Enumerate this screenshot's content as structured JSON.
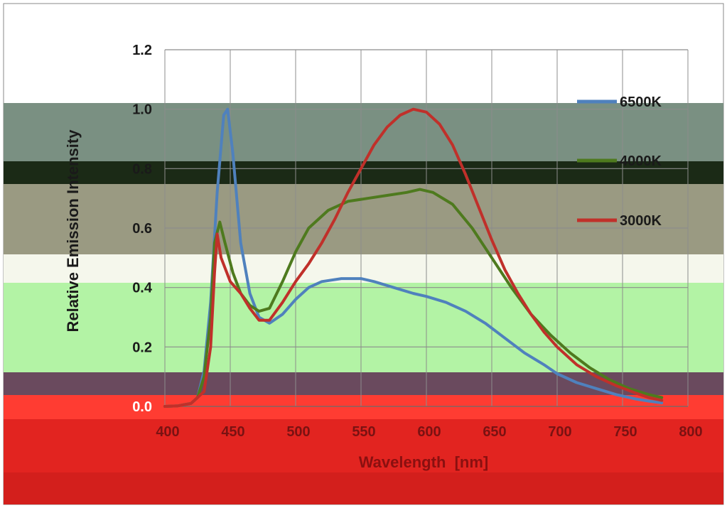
{
  "chart_data": {
    "type": "line",
    "title": "",
    "xlabel": "Wavelength  [nm]",
    "ylabel": "Relative Emission Intensity",
    "xlim": [
      400,
      800
    ],
    "ylim": [
      0,
      1.2
    ],
    "x_ticks": [
      400,
      450,
      500,
      550,
      600,
      650,
      700,
      750,
      800
    ],
    "y_ticks": [
      "0.0",
      "0.2",
      "0.4",
      "0.6",
      "0.8",
      "1.0",
      "1.2"
    ],
    "grid": true,
    "legend_position": "right",
    "series": [
      {
        "name": "6500K",
        "color": "#4f81bd",
        "points": [
          [
            400,
            0
          ],
          [
            410,
            0.002
          ],
          [
            420,
            0.01
          ],
          [
            425,
            0.03
          ],
          [
            430,
            0.12
          ],
          [
            435,
            0.35
          ],
          [
            440,
            0.72
          ],
          [
            445,
            0.98
          ],
          [
            448,
            1.0
          ],
          [
            452,
            0.85
          ],
          [
            458,
            0.55
          ],
          [
            465,
            0.38
          ],
          [
            472,
            0.3
          ],
          [
            480,
            0.28
          ],
          [
            490,
            0.31
          ],
          [
            500,
            0.36
          ],
          [
            510,
            0.4
          ],
          [
            520,
            0.42
          ],
          [
            535,
            0.43
          ],
          [
            550,
            0.43
          ],
          [
            560,
            0.42
          ],
          [
            575,
            0.4
          ],
          [
            590,
            0.38
          ],
          [
            600,
            0.37
          ],
          [
            615,
            0.35
          ],
          [
            630,
            0.32
          ],
          [
            645,
            0.28
          ],
          [
            660,
            0.23
          ],
          [
            675,
            0.18
          ],
          [
            690,
            0.14
          ],
          [
            700,
            0.11
          ],
          [
            715,
            0.08
          ],
          [
            730,
            0.06
          ],
          [
            745,
            0.04
          ],
          [
            760,
            0.025
          ],
          [
            770,
            0.018
          ],
          [
            780,
            0.012
          ]
        ]
      },
      {
        "name": "4000K",
        "color": "#4e7a1e",
        "points": [
          [
            400,
            0
          ],
          [
            410,
            0.002
          ],
          [
            420,
            0.01
          ],
          [
            425,
            0.03
          ],
          [
            430,
            0.1
          ],
          [
            435,
            0.3
          ],
          [
            438,
            0.55
          ],
          [
            442,
            0.62
          ],
          [
            446,
            0.55
          ],
          [
            452,
            0.45
          ],
          [
            458,
            0.38
          ],
          [
            465,
            0.34
          ],
          [
            472,
            0.32
          ],
          [
            480,
            0.33
          ],
          [
            490,
            0.42
          ],
          [
            500,
            0.52
          ],
          [
            510,
            0.6
          ],
          [
            525,
            0.66
          ],
          [
            540,
            0.69
          ],
          [
            555,
            0.7
          ],
          [
            570,
            0.71
          ],
          [
            585,
            0.72
          ],
          [
            595,
            0.73
          ],
          [
            605,
            0.72
          ],
          [
            620,
            0.68
          ],
          [
            635,
            0.6
          ],
          [
            650,
            0.5
          ],
          [
            665,
            0.4
          ],
          [
            680,
            0.31
          ],
          [
            695,
            0.24
          ],
          [
            710,
            0.18
          ],
          [
            725,
            0.13
          ],
          [
            740,
            0.09
          ],
          [
            755,
            0.06
          ],
          [
            770,
            0.04
          ],
          [
            780,
            0.03
          ]
        ]
      },
      {
        "name": "3000K",
        "color": "#c0302a",
        "points": [
          [
            400,
            0
          ],
          [
            410,
            0.002
          ],
          [
            420,
            0.01
          ],
          [
            430,
            0.05
          ],
          [
            435,
            0.2
          ],
          [
            438,
            0.45
          ],
          [
            440,
            0.58
          ],
          [
            443,
            0.5
          ],
          [
            450,
            0.42
          ],
          [
            458,
            0.38
          ],
          [
            465,
            0.33
          ],
          [
            472,
            0.29
          ],
          [
            480,
            0.29
          ],
          [
            490,
            0.35
          ],
          [
            500,
            0.42
          ],
          [
            510,
            0.48
          ],
          [
            520,
            0.55
          ],
          [
            530,
            0.63
          ],
          [
            540,
            0.72
          ],
          [
            550,
            0.8
          ],
          [
            560,
            0.88
          ],
          [
            570,
            0.94
          ],
          [
            580,
            0.98
          ],
          [
            590,
            1.0
          ],
          [
            600,
            0.99
          ],
          [
            610,
            0.95
          ],
          [
            620,
            0.88
          ],
          [
            630,
            0.78
          ],
          [
            640,
            0.67
          ],
          [
            650,
            0.56
          ],
          [
            660,
            0.46
          ],
          [
            670,
            0.38
          ],
          [
            680,
            0.31
          ],
          [
            690,
            0.25
          ],
          [
            700,
            0.2
          ],
          [
            715,
            0.14
          ],
          [
            730,
            0.1
          ],
          [
            745,
            0.07
          ],
          [
            760,
            0.045
          ],
          [
            770,
            0.03
          ],
          [
            780,
            0.02
          ]
        ]
      }
    ]
  }
}
